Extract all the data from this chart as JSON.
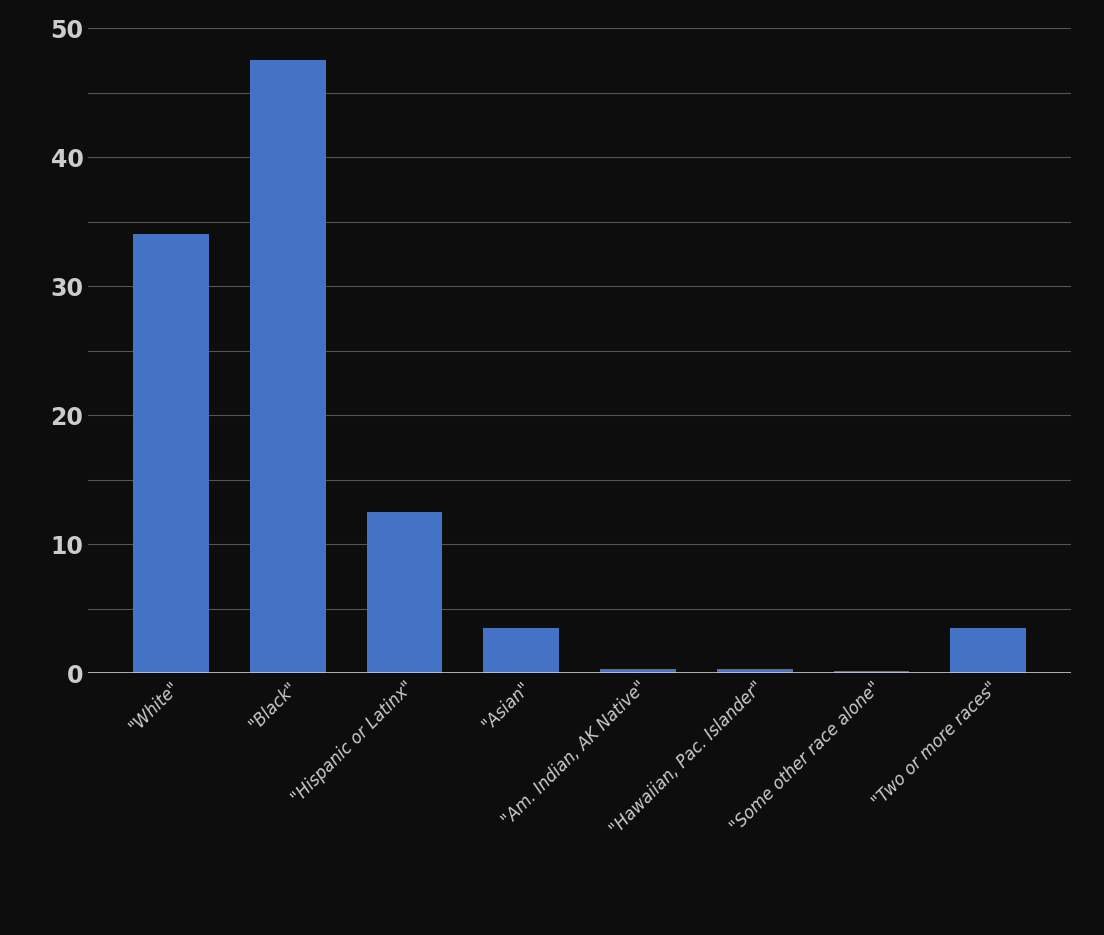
{
  "categories": [
    "\"White\"",
    "\"Black\"",
    "\"Hispanic or Latinx\"",
    "\"Asian\"",
    "\"Am. Indian, AK Native\"",
    "\"Hawaiian, Pac. Islander\"",
    "\"Some other race alone\"",
    "\"Two or more races\""
  ],
  "values": [
    34.0,
    47.5,
    12.5,
    3.5,
    0.3,
    0.35,
    0.2,
    3.5
  ],
  "bar_color": "#4472c4",
  "background_color": "#0d0d0d",
  "text_color": "#cccccc",
  "grid_color": "#555555",
  "ylim": [
    0,
    50
  ],
  "yticks_labeled": [
    0,
    10,
    20,
    30,
    40,
    50
  ],
  "yticks_minor": [
    5,
    15,
    25,
    35,
    45
  ],
  "bar_width": 0.65
}
